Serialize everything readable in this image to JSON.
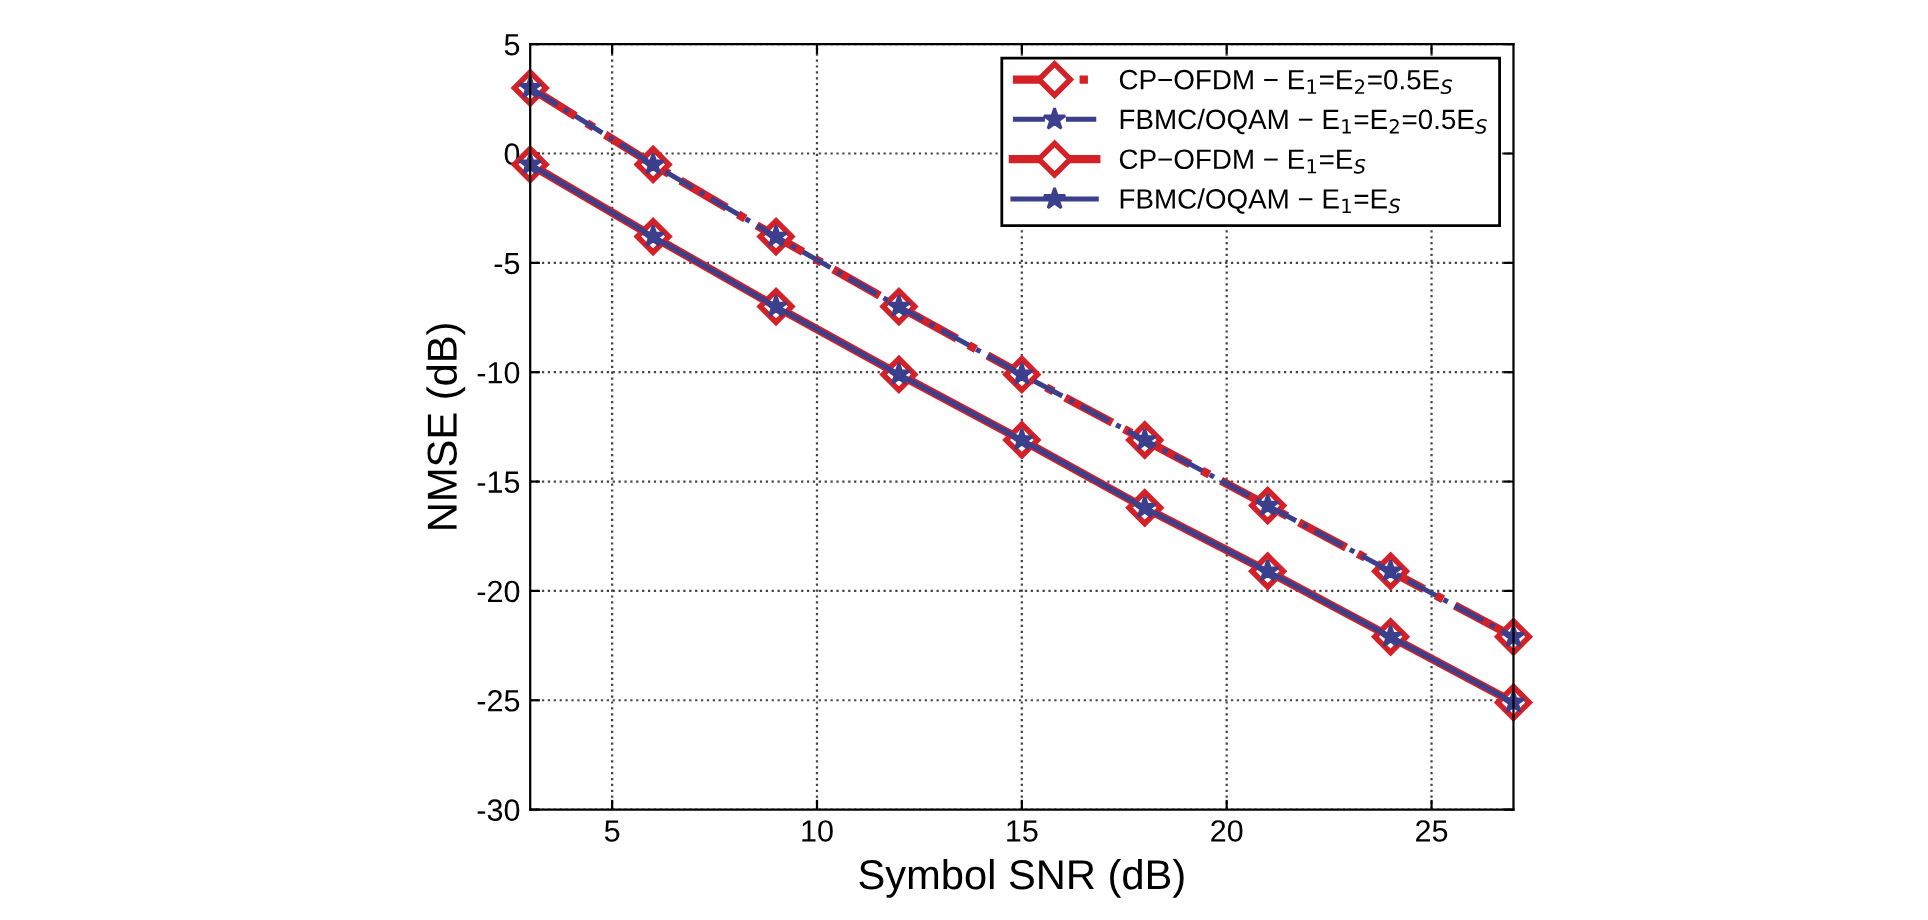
{
  "chart_data": {
    "type": "line",
    "xlabel": "Symbol SNR (dB)",
    "ylabel": "NMSE (dB)",
    "x": [
      3,
      6,
      9,
      12,
      15,
      18,
      21,
      24,
      27
    ],
    "series": [
      {
        "name": "CP−OFDM − E$_{1}$=E$_{2}$=0.5E$_{S}$",
        "color": "#d42027",
        "marker": "diamond",
        "line_style": "dashed",
        "values": [
          3.0,
          -0.5,
          -3.8,
          -7.0,
          -10.1,
          -13.1,
          -16.1,
          -19.1,
          -22.1
        ]
      },
      {
        "name": "FBMC/OQAM − E$_{1}$=E$_{2}$=0.5E$_{S}$",
        "color": "#3b3f8c",
        "marker": "star",
        "line_style": "dashed",
        "values": [
          3.0,
          -0.5,
          -3.8,
          -7.0,
          -10.1,
          -13.1,
          -16.1,
          -19.1,
          -22.1
        ]
      },
      {
        "name": "CP−OFDM − E$_{1}$=E$_{S}$",
        "color": "#d42027",
        "marker": "diamond",
        "line_style": "solid",
        "values": [
          -0.5,
          -3.8,
          -7.0,
          -10.1,
          -13.1,
          -16.2,
          -19.1,
          -22.1,
          -25.1
        ]
      },
      {
        "name": "FBMC/OQAM − E$_{1}$=E$_{S}$",
        "color": "#3b3f8c",
        "marker": "star",
        "line_style": "solid",
        "values": [
          -0.5,
          -3.8,
          -7.0,
          -10.1,
          -13.1,
          -16.2,
          -19.1,
          -22.1,
          -25.1
        ]
      }
    ],
    "xlim": [
      3,
      27
    ],
    "xticks": [
      5,
      10,
      15,
      20,
      25
    ],
    "ylim": [
      -30,
      5
    ],
    "yticks": [
      -30,
      -25,
      -20,
      -15,
      -10,
      -5,
      0,
      5
    ],
    "grid": true,
    "legend": "top right"
  }
}
